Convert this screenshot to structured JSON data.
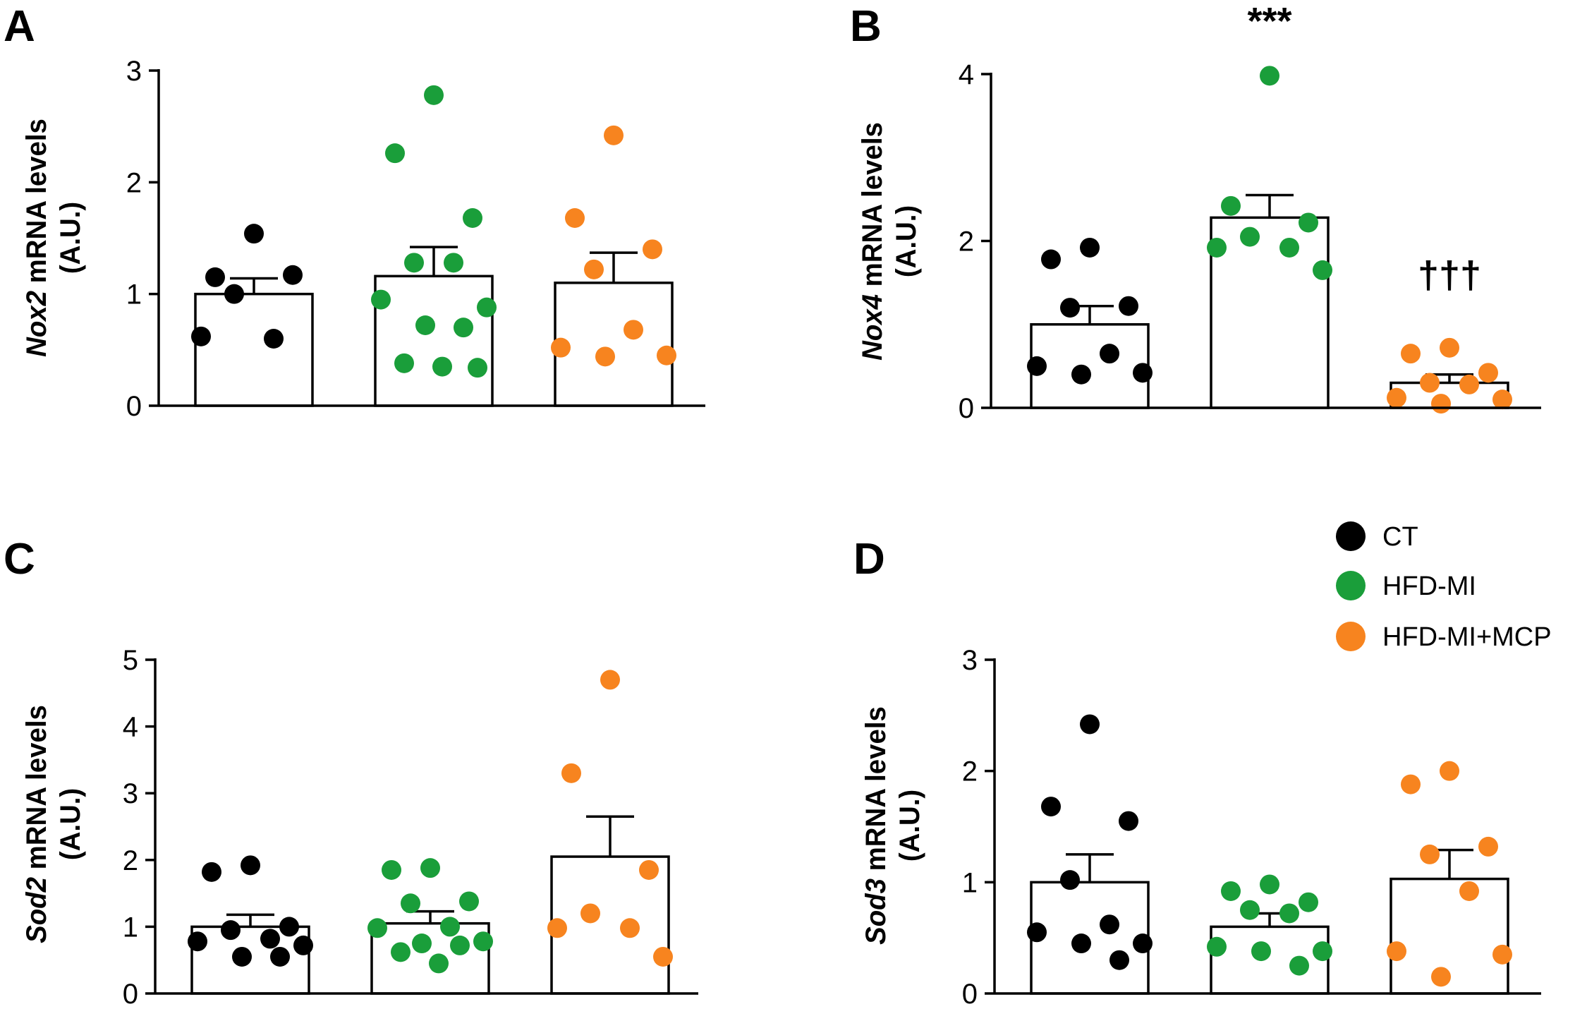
{
  "colors": {
    "CT": "#000000",
    "HFD-MI": "#1a9e3a",
    "HFD-MI+MCP": "#f7841f"
  },
  "legend": [
    {
      "group": "CT",
      "label": "CT"
    },
    {
      "group": "HFD-MI",
      "label": "HFD-MI"
    },
    {
      "group": "HFD-MI+MCP",
      "label": "HFD-MI+MCP"
    }
  ],
  "chart_data": [
    {
      "type": "bar",
      "panel": "A",
      "ylabel_gene": "Nox2",
      "ylabel_rest": " mRNA levels",
      "ylabel_unit": "(A.U.)",
      "ylim": [
        0,
        3
      ],
      "yticks": [
        0,
        1,
        2,
        3
      ],
      "categories": [
        "CT",
        "HFD-MI",
        "HFD-MI+MCP"
      ],
      "series": [
        {
          "group": "CT",
          "mean": 1.0,
          "sem": 0.14,
          "points": [
            1.54,
            1.15,
            1.17,
            1.0,
            0.6,
            0.62
          ]
        },
        {
          "group": "HFD-MI",
          "mean": 1.16,
          "sem": 0.26,
          "points": [
            2.78,
            2.26,
            1.68,
            1.28,
            1.28,
            0.95,
            0.88,
            0.72,
            0.7,
            0.38,
            0.35,
            0.34
          ]
        },
        {
          "group": "HFD-MI+MCP",
          "mean": 1.1,
          "sem": 0.27,
          "points": [
            2.42,
            1.68,
            1.4,
            1.22,
            0.68,
            0.52,
            0.45,
            0.44
          ]
        }
      ],
      "annotations": []
    },
    {
      "type": "bar",
      "panel": "B",
      "ylabel_gene": "Nox4",
      "ylabel_rest": " mRNA levels",
      "ylabel_unit": "(A.U.)",
      "ylim": [
        0,
        4
      ],
      "yticks": [
        0,
        2,
        4
      ],
      "categories": [
        "CT",
        "HFD-MI",
        "HFD-MI+MCP"
      ],
      "series": [
        {
          "group": "CT",
          "mean": 1.0,
          "sem": 0.22,
          "points": [
            1.92,
            1.78,
            1.22,
            1.2,
            0.65,
            0.5,
            0.42,
            0.4
          ]
        },
        {
          "group": "HFD-MI",
          "mean": 2.28,
          "sem": 0.27,
          "points": [
            3.98,
            2.42,
            2.22,
            2.05,
            1.92,
            1.92,
            1.65
          ]
        },
        {
          "group": "HFD-MI+MCP",
          "mean": 0.3,
          "sem": 0.1,
          "points": [
            0.72,
            0.65,
            0.42,
            0.3,
            0.28,
            0.12,
            0.1,
            0.05
          ]
        }
      ],
      "annotations": [
        {
          "category": "HFD-MI",
          "text": "***"
        },
        {
          "category": "HFD-MI+MCP",
          "text": "†††"
        }
      ]
    },
    {
      "type": "bar",
      "panel": "C",
      "ylabel_gene": "Sod2",
      "ylabel_rest": " mRNA levels",
      "ylabel_unit": "(A.U.)",
      "ylim": [
        0,
        5
      ],
      "yticks": [
        0,
        1,
        2,
        3,
        4,
        5
      ],
      "categories": [
        "CT",
        "HFD-MI",
        "HFD-MI+MCP"
      ],
      "series": [
        {
          "group": "CT",
          "mean": 1.0,
          "sem": 0.18,
          "points": [
            1.92,
            1.82,
            1.0,
            0.95,
            0.82,
            0.78,
            0.72,
            0.55,
            0.55
          ]
        },
        {
          "group": "HFD-MI",
          "mean": 1.05,
          "sem": 0.18,
          "points": [
            1.88,
            1.85,
            1.38,
            1.35,
            1.0,
            0.98,
            0.78,
            0.75,
            0.72,
            0.62,
            0.45
          ]
        },
        {
          "group": "HFD-MI+MCP",
          "mean": 2.05,
          "sem": 0.6,
          "points": [
            4.7,
            3.3,
            1.85,
            1.2,
            0.98,
            0.98,
            0.55
          ]
        }
      ],
      "annotations": []
    },
    {
      "type": "bar",
      "panel": "D",
      "ylabel_gene": "Sod3",
      "ylabel_rest": " mRNA levels",
      "ylabel_unit": "(A.U.)",
      "ylim": [
        0,
        3
      ],
      "yticks": [
        0,
        1,
        2,
        3
      ],
      "categories": [
        "CT",
        "HFD-MI",
        "HFD-MI+MCP"
      ],
      "series": [
        {
          "group": "CT",
          "mean": 1.0,
          "sem": 0.25,
          "points": [
            2.42,
            1.68,
            1.55,
            1.02,
            0.62,
            0.55,
            0.45,
            0.45,
            0.3
          ]
        },
        {
          "group": "HFD-MI",
          "mean": 0.6,
          "sem": 0.12,
          "points": [
            0.98,
            0.92,
            0.82,
            0.75,
            0.72,
            0.42,
            0.38,
            0.38,
            0.25
          ]
        },
        {
          "group": "HFD-MI+MCP",
          "mean": 1.03,
          "sem": 0.26,
          "points": [
            2.0,
            1.88,
            1.32,
            1.25,
            0.92,
            0.38,
            0.35,
            0.15
          ]
        }
      ],
      "annotations": []
    }
  ]
}
